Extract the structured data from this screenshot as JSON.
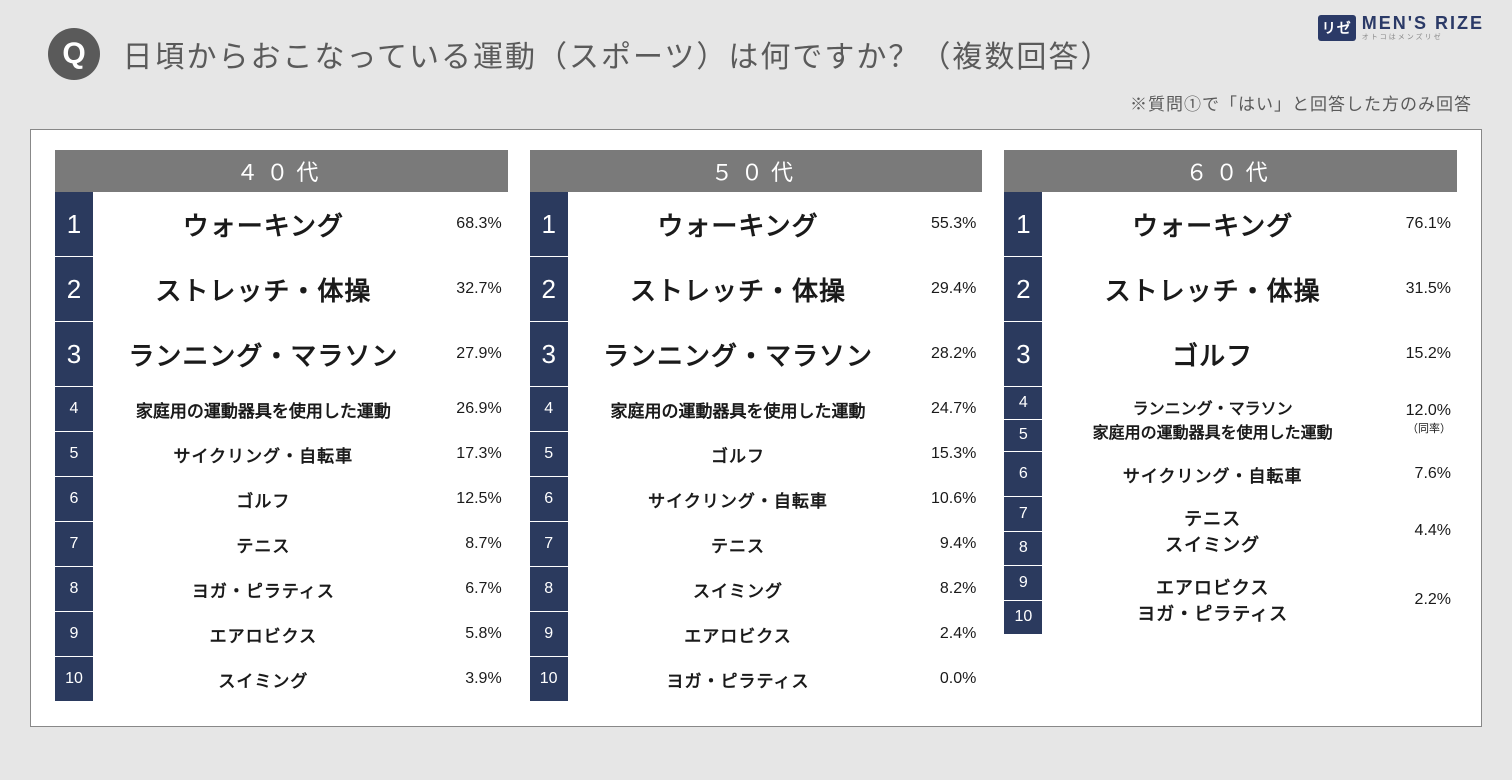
{
  "brand": {
    "badge": "リゼ",
    "main": "MEN'S RIZE",
    "sub": "オトコはメンズリゼ"
  },
  "q_letter": "Q",
  "question": "日頃からおこなっている運動（スポーツ）は何ですか？（複数回答）",
  "note": "※質問①で「はい」と回答した方のみ回答",
  "columns": [
    {
      "title": "４０代",
      "rows": [
        {
          "ranks": [
            "1"
          ],
          "labels": [
            "ウォーキング"
          ],
          "pct": "68.3%",
          "big": true
        },
        {
          "ranks": [
            "2"
          ],
          "labels": [
            "ストレッチ・体操"
          ],
          "pct": "32.7%",
          "big": true
        },
        {
          "ranks": [
            "3"
          ],
          "labels": [
            "ランニング・マラソン"
          ],
          "pct": "27.9%",
          "big": true
        },
        {
          "ranks": [
            "4"
          ],
          "labels": [
            "家庭用の運動器具を使用した運動"
          ],
          "pct": "26.9%",
          "labelSize": "sm"
        },
        {
          "ranks": [
            "5"
          ],
          "labels": [
            "サイクリング・自転車"
          ],
          "pct": "17.3%"
        },
        {
          "ranks": [
            "6"
          ],
          "labels": [
            "ゴルフ"
          ],
          "pct": "12.5%"
        },
        {
          "ranks": [
            "7"
          ],
          "labels": [
            "テニス"
          ],
          "pct": "8.7%"
        },
        {
          "ranks": [
            "8"
          ],
          "labels": [
            "ヨガ・ピラティス"
          ],
          "pct": "6.7%"
        },
        {
          "ranks": [
            "9"
          ],
          "labels": [
            "エアロビクス"
          ],
          "pct": "5.8%"
        },
        {
          "ranks": [
            "10"
          ],
          "labels": [
            "スイミング"
          ],
          "pct": "3.9%"
        }
      ]
    },
    {
      "title": "５０代",
      "rows": [
        {
          "ranks": [
            "1"
          ],
          "labels": [
            "ウォーキング"
          ],
          "pct": "55.3%",
          "big": true
        },
        {
          "ranks": [
            "2"
          ],
          "labels": [
            "ストレッチ・体操"
          ],
          "pct": "29.4%",
          "big": true
        },
        {
          "ranks": [
            "3"
          ],
          "labels": [
            "ランニング・マラソン"
          ],
          "pct": "28.2%",
          "big": true
        },
        {
          "ranks": [
            "4"
          ],
          "labels": [
            "家庭用の運動器具を使用した運動"
          ],
          "pct": "24.7%",
          "labelSize": "sm"
        },
        {
          "ranks": [
            "5"
          ],
          "labels": [
            "ゴルフ"
          ],
          "pct": "15.3%"
        },
        {
          "ranks": [
            "6"
          ],
          "labels": [
            "サイクリング・自転車"
          ],
          "pct": "10.6%"
        },
        {
          "ranks": [
            "7"
          ],
          "labels": [
            "テニス"
          ],
          "pct": "9.4%"
        },
        {
          "ranks": [
            "8"
          ],
          "labels": [
            "スイミング"
          ],
          "pct": "8.2%"
        },
        {
          "ranks": [
            "9"
          ],
          "labels": [
            "エアロビクス"
          ],
          "pct": "2.4%"
        },
        {
          "ranks": [
            "10"
          ],
          "labels": [
            "ヨガ・ピラティス"
          ],
          "pct": "0.0%"
        }
      ]
    },
    {
      "title": "６０代",
      "rows": [
        {
          "ranks": [
            "1"
          ],
          "labels": [
            "ウォーキング"
          ],
          "pct": "76.1%",
          "big": true
        },
        {
          "ranks": [
            "2"
          ],
          "labels": [
            "ストレッチ・体操"
          ],
          "pct": "31.5%",
          "big": true
        },
        {
          "ranks": [
            "3"
          ],
          "labels": [
            "ゴルフ"
          ],
          "pct": "15.2%",
          "big": true
        },
        {
          "ranks": [
            "4",
            "5"
          ],
          "labels": [
            "ランニング・マラソン",
            "家庭用の運動器具を使用した運動"
          ],
          "pct": "12.0%",
          "pctSub": "（同率）",
          "labelSize": "sm",
          "tie": true
        },
        {
          "ranks": [
            "6"
          ],
          "labels": [
            "サイクリング・自転車"
          ],
          "pct": "7.6%"
        },
        {
          "ranks": [
            "7",
            "8"
          ],
          "labels": [
            "テニス",
            "スイミング"
          ],
          "pct": "4.4%",
          "tie": true
        },
        {
          "ranks": [
            "9",
            "10"
          ],
          "labels": [
            "エアロビクス",
            "ヨガ・ピラティス"
          ],
          "pct": "2.2%",
          "tie": true
        }
      ]
    }
  ]
}
